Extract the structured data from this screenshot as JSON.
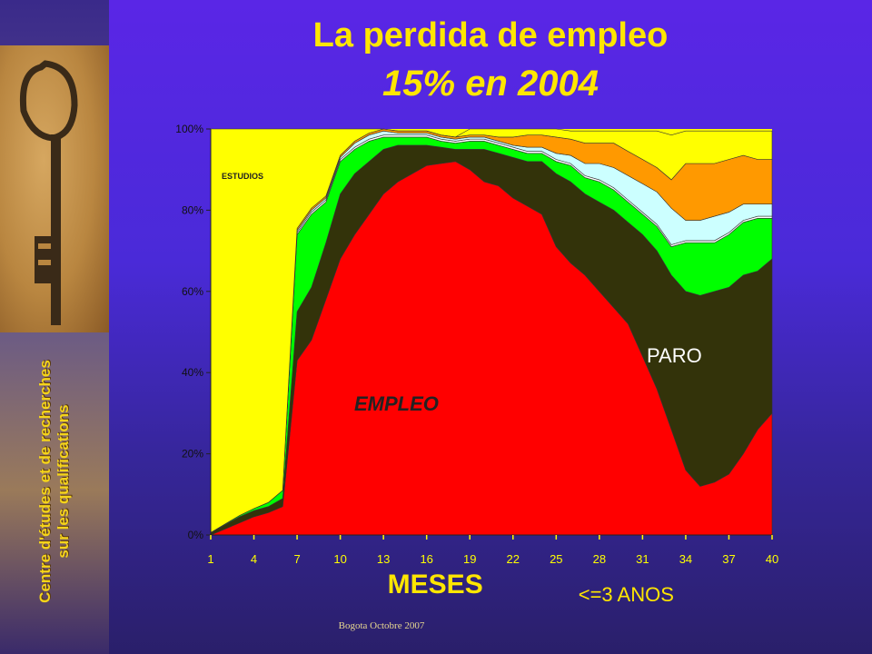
{
  "title": "La perdida de empleo",
  "subtitle": "15% en 2004",
  "sidebar": {
    "line1": "Centre d'études et de recherches",
    "line2": "sur les qualifications"
  },
  "footer": "Bogota Octobre 2007",
  "chart_data": {
    "type": "area",
    "stacked": true,
    "xlabel": "MESES",
    "xlabel_note": "<=3 ANOS",
    "x": [
      1,
      2,
      3,
      4,
      5,
      6,
      7,
      8,
      9,
      10,
      11,
      12,
      13,
      14,
      15,
      16,
      17,
      18,
      19,
      20,
      21,
      22,
      23,
      24,
      25,
      26,
      27,
      28,
      29,
      30,
      31,
      32,
      33,
      34,
      35,
      36,
      37,
      38,
      39,
      40
    ],
    "xticks": [
      1,
      4,
      7,
      10,
      13,
      16,
      19,
      22,
      25,
      28,
      31,
      34,
      37,
      40
    ],
    "yticks": [
      "0%",
      "20%",
      "40%",
      "60%",
      "80%",
      "100%"
    ],
    "ylim": [
      0,
      100
    ],
    "annotations": {
      "empleo": "EMPLEO",
      "paro": "PARO",
      "estudios": "ESTUDIOS"
    },
    "series": [
      {
        "name": "EMPLEO",
        "color": "#ff0000",
        "values": [
          0,
          1.5,
          3,
          4.5,
          5.5,
          7,
          43,
          48,
          58,
          68,
          74,
          79,
          84,
          87,
          89,
          91,
          91.5,
          92,
          90,
          87,
          86,
          83,
          81,
          79,
          71,
          67,
          64,
          60,
          56,
          52,
          44,
          36,
          26,
          16,
          12,
          13,
          15,
          20,
          26,
          30
        ]
      },
      {
        "name": "PARO",
        "color": "#33330a",
        "values": [
          0.5,
          1,
          1.5,
          1.5,
          1.5,
          2,
          12,
          13,
          14,
          16,
          15,
          13,
          11,
          9,
          7,
          5,
          4,
          3,
          5,
          8,
          8,
          10,
          11,
          13,
          18,
          20,
          20,
          22,
          24,
          25,
          30,
          34,
          38,
          44,
          47,
          47,
          46,
          44,
          39,
          38
        ]
      },
      {
        "name": "",
        "color": "#00ff00",
        "values": [
          0.1,
          0.2,
          0.3,
          0.5,
          1,
          2,
          19,
          18,
          10,
          8,
          6,
          5,
          3,
          2,
          2,
          2,
          1.5,
          1.5,
          2,
          2,
          2,
          2,
          2,
          2,
          3,
          4,
          4,
          5,
          5,
          5,
          5,
          6,
          7,
          12,
          13,
          12,
          13,
          13,
          13,
          10
        ]
      },
      {
        "name": "",
        "color": "#ffffff",
        "values": [
          0,
          0,
          0,
          0,
          0,
          0,
          0.5,
          0.5,
          0.5,
          0.5,
          0.5,
          0.5,
          0.5,
          0.5,
          0.5,
          0.5,
          0.5,
          0.5,
          0.5,
          0.5,
          0.5,
          0.5,
          0.5,
          0.5,
          0.5,
          0.5,
          0.5,
          0.5,
          0.5,
          0.5,
          0.5,
          0.5,
          0.5,
          0.5,
          0.5,
          0.5,
          0.5,
          0.5,
          0.5,
          0.5
        ]
      },
      {
        "name": "",
        "color": "#ccffff",
        "values": [
          0,
          0,
          0,
          0,
          0,
          0,
          0.5,
          0.5,
          0.5,
          0.5,
          1,
          1,
          1,
          0.5,
          0.5,
          0.5,
          0.5,
          0.5,
          0.5,
          0.5,
          0.5,
          0.5,
          1,
          1,
          1.5,
          2,
          3,
          4,
          5,
          6,
          7,
          8,
          9,
          5,
          5,
          6,
          5,
          4,
          3,
          3
        ]
      },
      {
        "name": "",
        "color": "#ff9900",
        "values": [
          0,
          0,
          0,
          0,
          0,
          0,
          0.5,
          0.5,
          0.5,
          0.5,
          0.5,
          0.5,
          0.5,
          0.5,
          0.5,
          0.5,
          0.5,
          0.5,
          0.5,
          0.5,
          1,
          2,
          3,
          3,
          4,
          4,
          5,
          5,
          6,
          6,
          6,
          6,
          7,
          14,
          14,
          13,
          13,
          12,
          11,
          11
        ]
      },
      {
        "name": "ESTUDIOS",
        "color": "#ffff00",
        "values": [
          99.4,
          97.3,
          95.2,
          93.5,
          92,
          89,
          24.5,
          19.5,
          16.5,
          6.5,
          3,
          1,
          0,
          0,
          0,
          0,
          0,
          0,
          1.5,
          1.5,
          2,
          2,
          1.5,
          1.5,
          2,
          2,
          3,
          3,
          3,
          5,
          7,
          9,
          11,
          8,
          8,
          8,
          7,
          6,
          7,
          7
        ]
      }
    ]
  }
}
